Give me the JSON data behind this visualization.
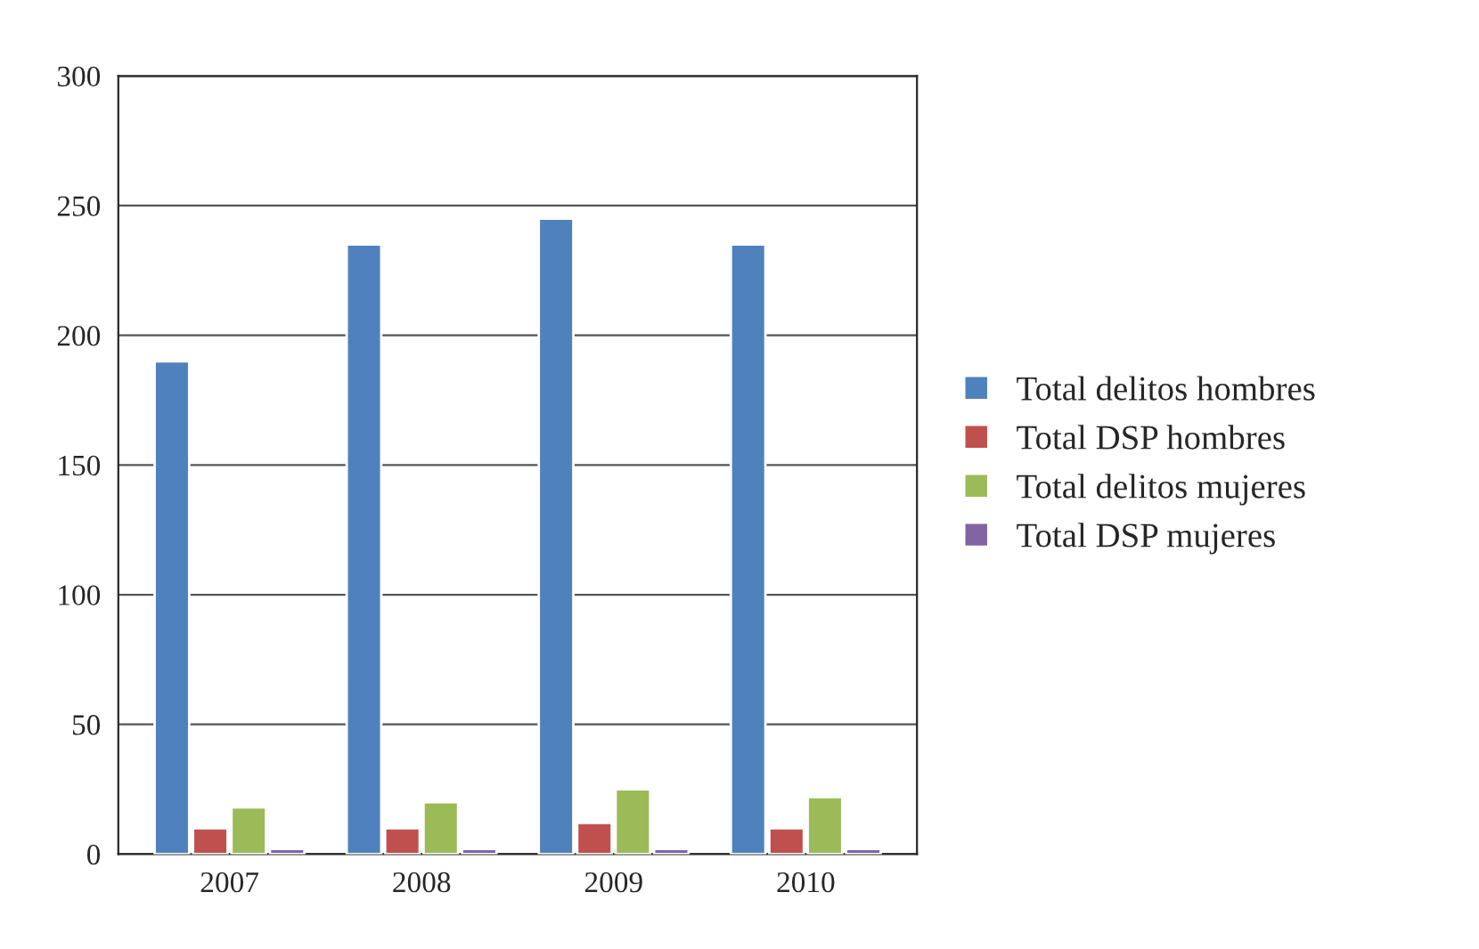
{
  "chart_data": {
    "type": "bar",
    "categories": [
      "2007",
      "2008",
      "2009",
      "2010"
    ],
    "series": [
      {
        "name": "Total delitos hombres",
        "color": "#4f81bd",
        "values": [
          190,
          235,
          245,
          235
        ]
      },
      {
        "name": "Total DSP hombres",
        "color": "#c0504d",
        "values": [
          10,
          10,
          12,
          10
        ]
      },
      {
        "name": "Total delitos mujeres",
        "color": "#9bbb59",
        "values": [
          18,
          20,
          25,
          22
        ]
      },
      {
        "name": "Total DSP mujeres",
        "color": "#8064a2",
        "values": [
          2,
          2,
          2,
          2
        ]
      }
    ],
    "ylim": [
      0,
      300
    ],
    "yticks": [
      0,
      50,
      100,
      150,
      200,
      250,
      300
    ],
    "grid": "y",
    "legend": "right"
  }
}
